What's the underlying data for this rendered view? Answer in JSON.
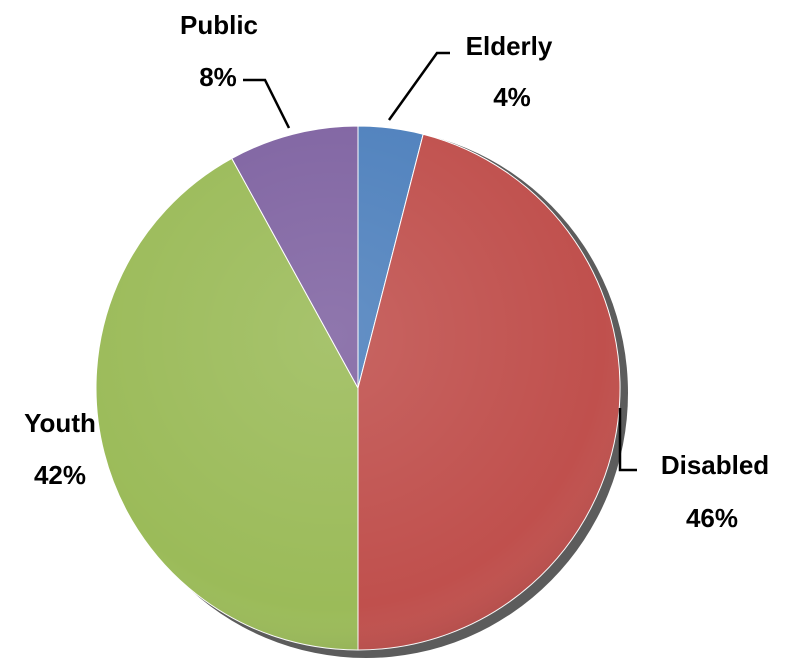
{
  "chart_data": {
    "type": "pie",
    "title": "",
    "slices": [
      {
        "name": "Elderly",
        "value": 4,
        "label": "4%",
        "color": "#4f81bd"
      },
      {
        "name": "Disabled",
        "value": 46,
        "label": "46%",
        "color": "#c0504d"
      },
      {
        "name": "Youth",
        "value": 42,
        "label": "42%",
        "color": "#9bbb59"
      },
      {
        "name": "Public",
        "value": 8,
        "label": "8%",
        "color": "#8064a2"
      }
    ],
    "legend": "none",
    "labels": "outside-with-leader-lines"
  }
}
